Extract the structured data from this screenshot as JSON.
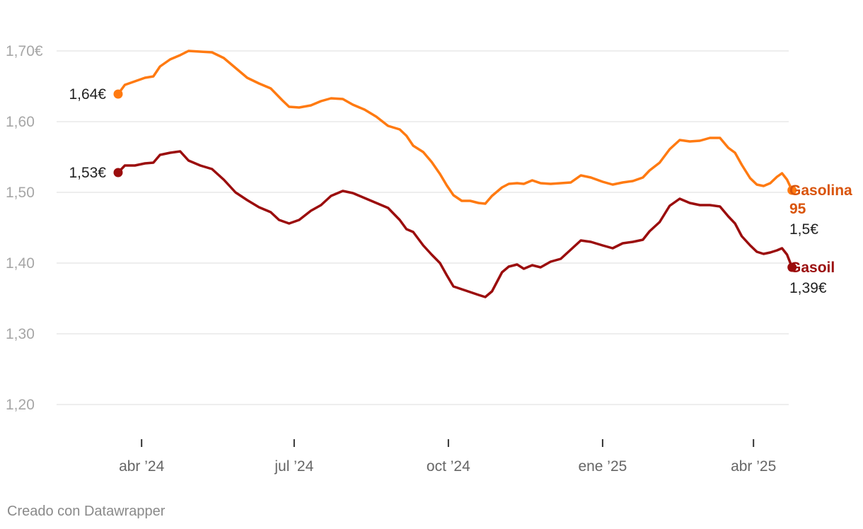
{
  "chart_data": {
    "type": "line",
    "y_axis": {
      "min": 1.2,
      "max": 1.7,
      "ticks": [
        {
          "value": 1.7,
          "label": "1,70€"
        },
        {
          "value": 1.6,
          "label": "1,60"
        },
        {
          "value": 1.5,
          "label": "1,50"
        },
        {
          "value": 1.4,
          "label": "1,40"
        },
        {
          "value": 1.3,
          "label": "1,30"
        },
        {
          "value": 1.2,
          "label": "1,20"
        }
      ]
    },
    "x_axis": {
      "start": "2024-03-18",
      "end": "2025-04-14",
      "ticks": [
        {
          "date": "2024-04-01",
          "label": "abr ’24"
        },
        {
          "date": "2024-07-01",
          "label": "jul ’24"
        },
        {
          "date": "2024-10-01",
          "label": "oct ’24"
        },
        {
          "date": "2025-01-01",
          "label": "ene ’25"
        },
        {
          "date": "2025-04-01",
          "label": "abr ’25"
        }
      ]
    },
    "grid": true,
    "series": [
      {
        "name_lines": [
          "Gasolina",
          "95"
        ],
        "color": "#ff7a11",
        "label_color": "#d9540b",
        "start_label": "1,64€",
        "end_label": "1,5€",
        "points": [
          [
            "2024-03-18",
            1.639
          ],
          [
            "2024-03-22",
            1.652
          ],
          [
            "2024-03-28",
            1.657
          ],
          [
            "2024-04-03",
            1.662
          ],
          [
            "2024-04-08",
            1.664
          ],
          [
            "2024-04-12",
            1.678
          ],
          [
            "2024-04-18",
            1.688
          ],
          [
            "2024-04-24",
            1.694
          ],
          [
            "2024-04-29",
            1.7
          ],
          [
            "2024-05-06",
            1.699
          ],
          [
            "2024-05-13",
            1.698
          ],
          [
            "2024-05-20",
            1.69
          ],
          [
            "2024-05-27",
            1.676
          ],
          [
            "2024-06-03",
            1.662
          ],
          [
            "2024-06-10",
            1.654
          ],
          [
            "2024-06-17",
            1.647
          ],
          [
            "2024-06-24",
            1.63
          ],
          [
            "2024-06-28",
            1.621
          ],
          [
            "2024-07-04",
            1.62
          ],
          [
            "2024-07-11",
            1.623
          ],
          [
            "2024-07-17",
            1.629
          ],
          [
            "2024-07-23",
            1.633
          ],
          [
            "2024-07-30",
            1.632
          ],
          [
            "2024-08-05",
            1.624
          ],
          [
            "2024-08-12",
            1.617
          ],
          [
            "2024-08-19",
            1.607
          ],
          [
            "2024-08-26",
            1.594
          ],
          [
            "2024-09-02",
            1.589
          ],
          [
            "2024-09-06",
            1.58
          ],
          [
            "2024-09-10",
            1.566
          ],
          [
            "2024-09-16",
            1.557
          ],
          [
            "2024-09-21",
            1.543
          ],
          [
            "2024-09-26",
            1.526
          ],
          [
            "2024-09-30",
            1.51
          ],
          [
            "2024-10-04",
            1.496
          ],
          [
            "2024-10-09",
            1.488
          ],
          [
            "2024-10-14",
            1.488
          ],
          [
            "2024-10-19",
            1.485
          ],
          [
            "2024-10-23",
            1.484
          ],
          [
            "2024-10-27",
            1.495
          ],
          [
            "2024-11-02",
            1.507
          ],
          [
            "2024-11-06",
            1.512
          ],
          [
            "2024-11-11",
            1.513
          ],
          [
            "2024-11-15",
            1.512
          ],
          [
            "2024-11-20",
            1.517
          ],
          [
            "2024-11-25",
            1.513
          ],
          [
            "2024-12-01",
            1.512
          ],
          [
            "2024-12-07",
            1.513
          ],
          [
            "2024-12-13",
            1.514
          ],
          [
            "2024-12-19",
            1.524
          ],
          [
            "2024-12-25",
            1.521
          ],
          [
            "2025-01-01",
            1.515
          ],
          [
            "2025-01-07",
            1.511
          ],
          [
            "2025-01-13",
            1.514
          ],
          [
            "2025-01-19",
            1.516
          ],
          [
            "2025-01-25",
            1.521
          ],
          [
            "2025-01-29",
            1.531
          ],
          [
            "2025-02-04",
            1.542
          ],
          [
            "2025-02-10",
            1.561
          ],
          [
            "2025-02-16",
            1.574
          ],
          [
            "2025-02-22",
            1.572
          ],
          [
            "2025-02-28",
            1.573
          ],
          [
            "2025-03-06",
            1.577
          ],
          [
            "2025-03-12",
            1.577
          ],
          [
            "2025-03-17",
            1.563
          ],
          [
            "2025-03-21",
            1.556
          ],
          [
            "2025-03-25",
            1.539
          ],
          [
            "2025-03-30",
            1.52
          ],
          [
            "2025-04-03",
            1.511
          ],
          [
            "2025-04-07",
            1.509
          ],
          [
            "2025-04-11",
            1.513
          ],
          [
            "2025-04-15",
            1.522
          ],
          [
            "2025-04-18",
            1.527
          ],
          [
            "2025-04-21",
            1.518
          ],
          [
            "2025-04-24",
            1.503
          ]
        ]
      },
      {
        "name_lines": [
          "Gasoil"
        ],
        "color": "#9b0d0d",
        "label_color": "#9b0d0d",
        "start_label": "1,53€",
        "end_label": "1,39€",
        "points": [
          [
            "2024-03-18",
            1.528
          ],
          [
            "2024-03-22",
            1.538
          ],
          [
            "2024-03-28",
            1.538
          ],
          [
            "2024-04-03",
            1.541
          ],
          [
            "2024-04-08",
            1.542
          ],
          [
            "2024-04-12",
            1.553
          ],
          [
            "2024-04-18",
            1.556
          ],
          [
            "2024-04-24",
            1.558
          ],
          [
            "2024-04-29",
            1.545
          ],
          [
            "2024-05-06",
            1.538
          ],
          [
            "2024-05-13",
            1.533
          ],
          [
            "2024-05-20",
            1.518
          ],
          [
            "2024-05-27",
            1.5
          ],
          [
            "2024-06-03",
            1.489
          ],
          [
            "2024-06-10",
            1.479
          ],
          [
            "2024-06-17",
            1.472
          ],
          [
            "2024-06-22",
            1.461
          ],
          [
            "2024-06-28",
            1.456
          ],
          [
            "2024-07-04",
            1.461
          ],
          [
            "2024-07-11",
            1.474
          ],
          [
            "2024-07-17",
            1.482
          ],
          [
            "2024-07-23",
            1.495
          ],
          [
            "2024-07-30",
            1.502
          ],
          [
            "2024-08-05",
            1.499
          ],
          [
            "2024-08-12",
            1.492
          ],
          [
            "2024-08-19",
            1.485
          ],
          [
            "2024-08-26",
            1.478
          ],
          [
            "2024-09-02",
            1.461
          ],
          [
            "2024-09-06",
            1.448
          ],
          [
            "2024-09-10",
            1.444
          ],
          [
            "2024-09-16",
            1.425
          ],
          [
            "2024-09-21",
            1.412
          ],
          [
            "2024-09-26",
            1.4
          ],
          [
            "2024-09-30",
            1.383
          ],
          [
            "2024-10-04",
            1.367
          ],
          [
            "2024-10-09",
            1.363
          ],
          [
            "2024-10-14",
            1.359
          ],
          [
            "2024-10-19",
            1.355
          ],
          [
            "2024-10-23",
            1.352
          ],
          [
            "2024-10-27",
            1.36
          ],
          [
            "2024-11-02",
            1.387
          ],
          [
            "2024-11-06",
            1.395
          ],
          [
            "2024-11-11",
            1.398
          ],
          [
            "2024-11-15",
            1.392
          ],
          [
            "2024-11-20",
            1.397
          ],
          [
            "2024-11-25",
            1.394
          ],
          [
            "2024-12-01",
            1.402
          ],
          [
            "2024-12-07",
            1.406
          ],
          [
            "2024-12-13",
            1.419
          ],
          [
            "2024-12-19",
            1.432
          ],
          [
            "2024-12-25",
            1.43
          ],
          [
            "2025-01-01",
            1.425
          ],
          [
            "2025-01-07",
            1.421
          ],
          [
            "2025-01-13",
            1.428
          ],
          [
            "2025-01-19",
            1.43
          ],
          [
            "2025-01-25",
            1.433
          ],
          [
            "2025-01-29",
            1.445
          ],
          [
            "2025-02-04",
            1.458
          ],
          [
            "2025-02-10",
            1.481
          ],
          [
            "2025-02-16",
            1.491
          ],
          [
            "2025-02-22",
            1.485
          ],
          [
            "2025-02-28",
            1.482
          ],
          [
            "2025-03-06",
            1.482
          ],
          [
            "2025-03-12",
            1.48
          ],
          [
            "2025-03-17",
            1.466
          ],
          [
            "2025-03-21",
            1.456
          ],
          [
            "2025-03-25",
            1.438
          ],
          [
            "2025-03-30",
            1.425
          ],
          [
            "2025-04-03",
            1.416
          ],
          [
            "2025-04-07",
            1.413
          ],
          [
            "2025-04-11",
            1.415
          ],
          [
            "2025-04-15",
            1.418
          ],
          [
            "2025-04-18",
            1.421
          ],
          [
            "2025-04-21",
            1.412
          ],
          [
            "2025-04-24",
            1.394
          ]
        ]
      }
    ]
  },
  "footer": {
    "credit": "Creado con Datawrapper"
  }
}
